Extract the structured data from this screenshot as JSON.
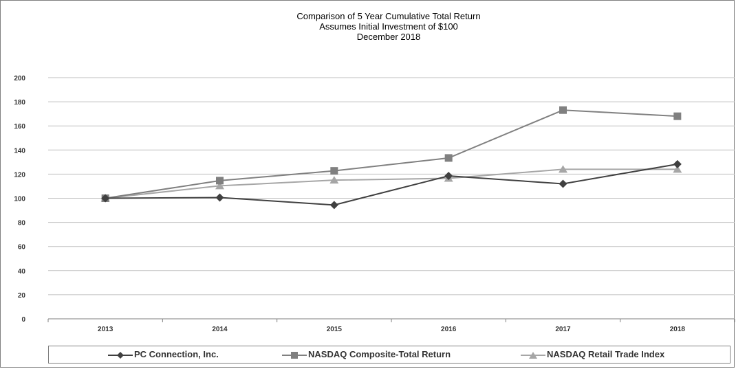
{
  "chart_data": {
    "type": "line",
    "title": "Comparison of 5 Year Cumulative Total Return",
    "subtitle_1": "Assumes Initial Investment of $100",
    "subtitle_2": "December 2018",
    "xlabel": "",
    "ylabel": "",
    "categories": [
      "2013",
      "2014",
      "2015",
      "2016",
      "2017",
      "2018"
    ],
    "ylim": [
      0,
      200
    ],
    "yticks": [
      0,
      20,
      40,
      60,
      80,
      100,
      120,
      140,
      160,
      180,
      200
    ],
    "grid": true,
    "legend_position": "bottom",
    "series": [
      {
        "name": "PC Connection, Inc.",
        "marker": "diamond",
        "color": "#404040",
        "values": [
          100,
          100.6,
          94.4,
          118.5,
          112.0,
          128.3
        ]
      },
      {
        "name": "NASDAQ Composite-Total Return",
        "marker": "square",
        "color": "#808080",
        "values": [
          100,
          114.6,
          122.7,
          133.4,
          173.1,
          168.0
        ]
      },
      {
        "name": "NASDAQ Retail Trade Index",
        "marker": "triangle",
        "color": "#a6a6a6",
        "values": [
          100,
          110.3,
          115.0,
          116.5,
          124.0,
          124.0
        ]
      }
    ]
  }
}
